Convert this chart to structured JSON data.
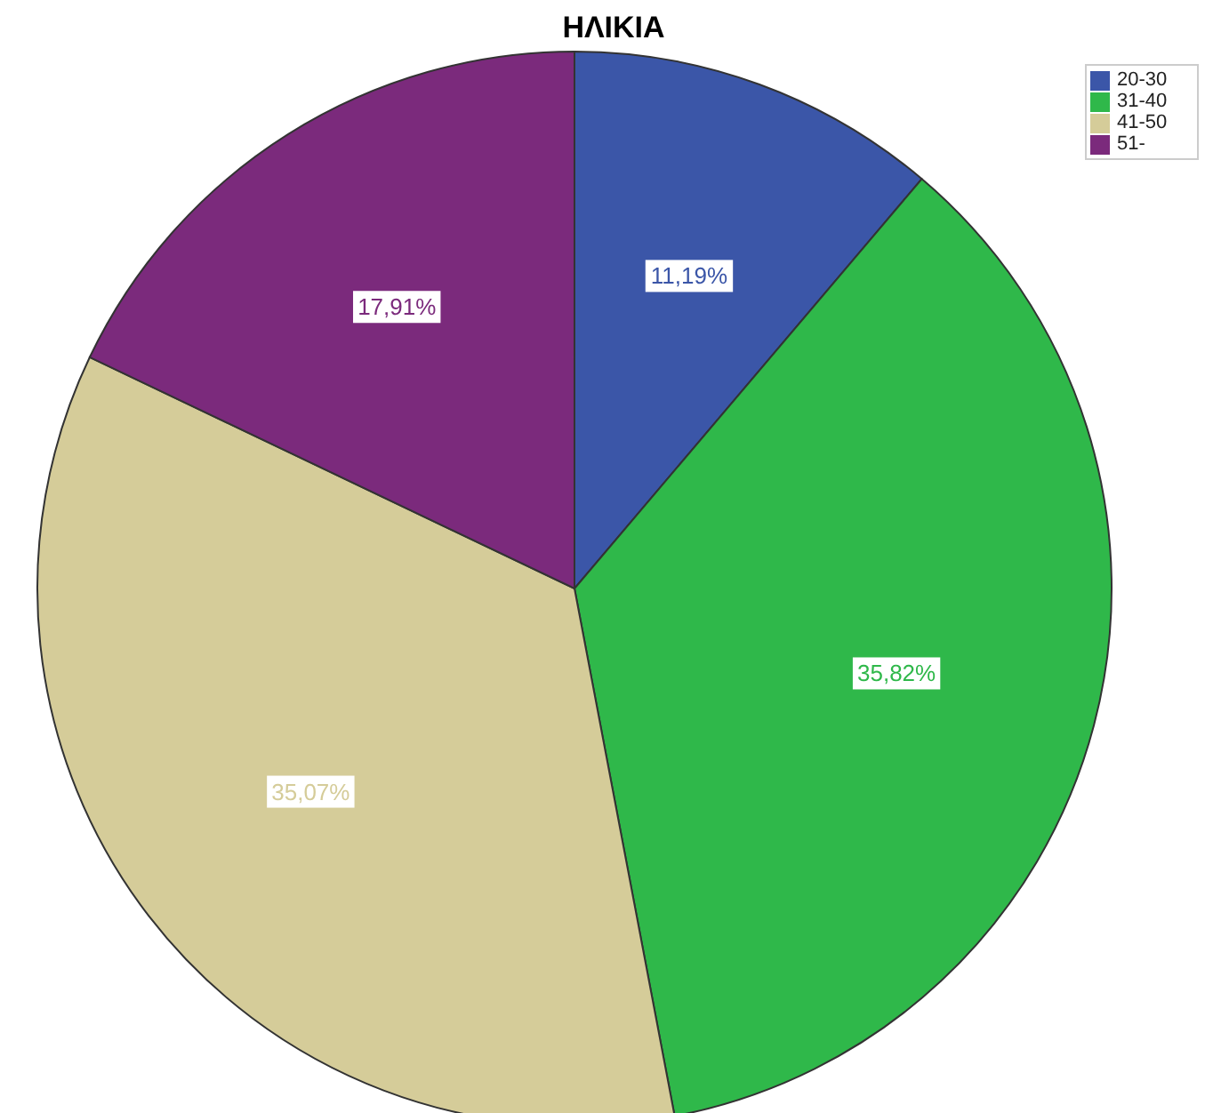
{
  "chart_data": {
    "type": "pie",
    "title": "ΗΛΙΚΙΑ",
    "categories": [
      "20-30",
      "31-40",
      "41-50",
      "51-"
    ],
    "values": [
      11.19,
      35.82,
      35.07,
      17.91
    ],
    "colors": [
      "#3b56a8",
      "#2fb84a",
      "#d5cc99",
      "#7b2a7c"
    ],
    "value_labels": [
      "11,19%",
      "35,82%",
      "35,07%",
      "17,91%"
    ],
    "legend": "top right"
  }
}
